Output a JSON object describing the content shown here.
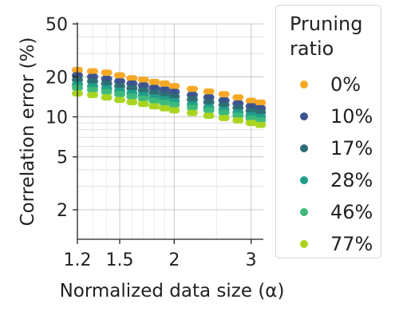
{
  "chart_data": {
    "type": "scatter",
    "title": "",
    "xlabel": "Normalized data size (α)",
    "ylabel": "Correlation error (%)",
    "xscale": "log",
    "yscale": "log",
    "xlim": [
      1.2,
      3.2
    ],
    "ylim": [
      1.2,
      50
    ],
    "xticks": [
      1.2,
      1.5,
      2,
      3
    ],
    "xtick_labels": [
      "1.2",
      "1.5",
      "2",
      "3"
    ],
    "yticks": [
      2,
      5,
      10,
      20,
      50
    ],
    "ytick_labels": [
      "2",
      "5",
      "10",
      "20",
      "50"
    ],
    "grid": true,
    "legend": {
      "title": "Pruning ratio",
      "position": "right"
    },
    "series": [
      {
        "name": "0%",
        "color": "#f5a623",
        "x": [
          1.2,
          1.3,
          1.4,
          1.5,
          1.6,
          1.7,
          1.8,
          1.9,
          2.0,
          2.2,
          2.4,
          2.6,
          2.8,
          3.0,
          3.15
        ],
        "y": [
          22.5,
          22,
          21.5,
          20.5,
          19.5,
          19,
          18.3,
          17.8,
          17,
          16.2,
          15.5,
          14.8,
          14,
          13.2,
          12.8
        ]
      },
      {
        "name": "10%",
        "color": "#3b528b",
        "x": [
          1.2,
          1.3,
          1.4,
          1.5,
          1.6,
          1.7,
          1.8,
          1.9,
          2.0,
          2.2,
          2.4,
          2.6,
          2.8,
          3.0,
          3.15
        ],
        "y": [
          20.5,
          20,
          19.3,
          18.5,
          17.8,
          17.2,
          16.5,
          16,
          15.4,
          14.6,
          14,
          13.3,
          12.6,
          12,
          11.6
        ]
      },
      {
        "name": "17%",
        "color": "#2c6e74",
        "x": [
          1.2,
          1.3,
          1.4,
          1.5,
          1.6,
          1.7,
          1.8,
          1.9,
          2.0,
          2.2,
          2.4,
          2.6,
          2.8,
          3.0,
          3.15
        ],
        "y": [
          19,
          18.5,
          17.8,
          17,
          16.4,
          15.8,
          15.2,
          14.7,
          14.2,
          13.5,
          12.9,
          12.3,
          11.7,
          11.1,
          10.8
        ]
      },
      {
        "name": "28%",
        "color": "#1f9e89",
        "x": [
          1.2,
          1.3,
          1.4,
          1.5,
          1.6,
          1.7,
          1.8,
          1.9,
          2.0,
          2.2,
          2.4,
          2.6,
          2.8,
          3.0,
          3.15
        ],
        "y": [
          17.5,
          17,
          16.4,
          15.7,
          15.1,
          14.6,
          14,
          13.6,
          13.1,
          12.4,
          11.8,
          11.3,
          10.8,
          10.3,
          10
        ]
      },
      {
        "name": "46%",
        "color": "#3db97a",
        "x": [
          1.2,
          1.3,
          1.4,
          1.5,
          1.6,
          1.7,
          1.8,
          1.9,
          2.0,
          2.2,
          2.4,
          2.6,
          2.8,
          3.0,
          3.15
        ],
        "y": [
          16.5,
          16,
          15.4,
          14.8,
          14.2,
          13.7,
          13.2,
          12.8,
          12.3,
          11.7,
          11.2,
          10.7,
          10.2,
          9.7,
          9.4
        ]
      },
      {
        "name": "77%",
        "color": "#a8d41e",
        "x": [
          1.2,
          1.3,
          1.4,
          1.5,
          1.6,
          1.7,
          1.8,
          1.9,
          2.0,
          2.2,
          2.4,
          2.6,
          2.8,
          3.0,
          3.15
        ],
        "y": [
          15,
          14.6,
          14,
          13.4,
          12.9,
          12.5,
          12,
          11.6,
          11.2,
          10.7,
          10.2,
          9.8,
          9.4,
          9,
          8.7
        ]
      }
    ]
  }
}
